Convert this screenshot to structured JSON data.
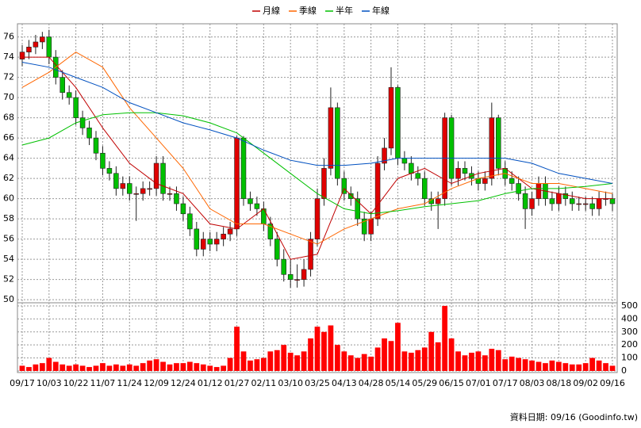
{
  "chart_data": [
    {
      "type": "candlestick",
      "xlim": [
        0,
        88
      ],
      "xticks": [
        {
          "value": 0,
          "label": "09/17"
        },
        {
          "value": 4,
          "label": "10/03"
        },
        {
          "value": 8,
          "label": "10/22"
        },
        {
          "value": 12,
          "label": "11/07"
        },
        {
          "value": 16,
          "label": "11/24"
        },
        {
          "value": 20,
          "label": "12/09"
        },
        {
          "value": 24,
          "label": "12/24"
        },
        {
          "value": 28,
          "label": "01/12"
        },
        {
          "value": 32,
          "label": "01/27"
        },
        {
          "value": 36,
          "label": "02/11"
        },
        {
          "value": 40,
          "label": "03/10"
        },
        {
          "value": 44,
          "label": "03/25"
        },
        {
          "value": 48,
          "label": "04/13"
        },
        {
          "value": 52,
          "label": "04/28"
        },
        {
          "value": 56,
          "label": "05/14"
        },
        {
          "value": 60,
          "label": "05/29"
        },
        {
          "value": 64,
          "label": "06/15"
        },
        {
          "value": 68,
          "label": "07/01"
        },
        {
          "value": 72,
          "label": "07/17"
        },
        {
          "value": 76,
          "label": "08/03"
        },
        {
          "value": 80,
          "label": "08/18"
        },
        {
          "value": 84,
          "label": "09/02"
        },
        {
          "value": 88,
          "label": "09/16"
        }
      ],
      "ylim": [
        49.7,
        77.3
      ],
      "yticks": [
        50,
        52,
        54,
        56,
        58,
        60,
        62,
        64,
        66,
        68,
        70,
        72,
        74,
        76
      ],
      "grid": true,
      "up_color": "#e00000",
      "down_color": "#00c000",
      "open": [
        73.8,
        74.5,
        75,
        75.5,
        76,
        74,
        72,
        70.5,
        70,
        68,
        67,
        66,
        64.5,
        63,
        62.5,
        61,
        61.5,
        60.5,
        60.5,
        61,
        61,
        63.5,
        60.5,
        60.5,
        59.5,
        58.5,
        57,
        55,
        56,
        55.5,
        56,
        56.5,
        57,
        66,
        60,
        59.5,
        59,
        57.5,
        56,
        54,
        52.5,
        52,
        52,
        53,
        56,
        60,
        63,
        69,
        62,
        60.5,
        60,
        58,
        56.5,
        58,
        63.5,
        65,
        71,
        64,
        63.5,
        62.5,
        62,
        60,
        59.5,
        60,
        68,
        62,
        63,
        62.5,
        62,
        61.5,
        62,
        68,
        63,
        62,
        61.5,
        60.5,
        59,
        60,
        61.5,
        60,
        59.5,
        60.5,
        60,
        59.5,
        59.5,
        59.5,
        59,
        60,
        60
      ],
      "high": [
        75.2,
        75.7,
        76.2,
        76.5,
        76.7,
        74.7,
        72.7,
        71.2,
        70.7,
        68.7,
        67.7,
        66.7,
        65.2,
        63.7,
        63.2,
        62.2,
        62.2,
        61.2,
        61.7,
        61.7,
        64.2,
        64.2,
        61.2,
        61.2,
        60.2,
        59.2,
        57.7,
        56.7,
        56.7,
        56.7,
        57.2,
        57.7,
        66.2,
        66.2,
        60.7,
        60.2,
        59.7,
        58.2,
        56.7,
        55,
        54,
        53.5,
        54,
        56.7,
        61,
        64,
        71,
        69.5,
        62.7,
        61.2,
        60.7,
        58.7,
        58.7,
        64.2,
        66,
        73,
        71.2,
        64.7,
        64.2,
        63.2,
        62.7,
        60.7,
        60.7,
        68.5,
        68.3,
        63.7,
        63.7,
        63.2,
        62.7,
        62.7,
        69.5,
        68.3,
        63.7,
        62.7,
        62.2,
        61.2,
        60.7,
        62.2,
        62.2,
        60.7,
        61.2,
        61.2,
        60.7,
        60.2,
        60.2,
        60.2,
        60.7,
        60.7,
        60.5
      ],
      "low": [
        73.1,
        73.8,
        74.3,
        74.8,
        73.3,
        71.3,
        69.8,
        69.3,
        67.3,
        66.3,
        65.3,
        63.8,
        62.3,
        61.8,
        60.3,
        60.3,
        59.8,
        57.8,
        59.8,
        60.3,
        60.3,
        59.8,
        59.8,
        58.8,
        57.8,
        56.3,
        54.3,
        54.3,
        54.8,
        54.8,
        55.3,
        55.8,
        56.3,
        59.3,
        58.8,
        58.3,
        56.8,
        55.3,
        53.3,
        51.8,
        51.2,
        51.2,
        51.3,
        52.3,
        55.3,
        59.3,
        62.3,
        61.3,
        59.8,
        59.3,
        57.3,
        55.8,
        55.8,
        57.3,
        62.8,
        64.3,
        63.3,
        62.8,
        61.8,
        61.3,
        59.3,
        58.8,
        57,
        59.3,
        61.3,
        61.3,
        61.8,
        61.3,
        60.8,
        60.8,
        61.3,
        62.3,
        61.3,
        60.8,
        59.8,
        57,
        58.3,
        59.3,
        59.3,
        58.8,
        58.8,
        59.3,
        58.8,
        58.8,
        58.8,
        58.3,
        58.3,
        59.3,
        58.8
      ],
      "close": [
        74.5,
        75,
        75.5,
        76,
        74,
        72,
        70.5,
        70,
        68,
        67,
        66,
        64.5,
        63,
        62.5,
        61,
        61.5,
        60.5,
        60.5,
        61,
        61,
        63.5,
        60.5,
        60.5,
        59.5,
        58.5,
        57,
        55,
        56,
        55.5,
        56,
        56.5,
        57,
        66,
        60,
        59.5,
        59,
        57.5,
        56,
        54,
        52.5,
        52,
        52,
        53,
        56,
        60,
        63,
        69,
        62,
        60.5,
        60,
        58,
        56.5,
        58,
        63.5,
        65,
        71,
        64,
        63.5,
        62.5,
        62,
        60,
        59.5,
        60,
        68,
        62,
        63,
        62.5,
        62,
        61.5,
        62,
        68,
        63,
        62,
        61.5,
        60.5,
        59,
        60,
        61.5,
        60,
        59.5,
        60.5,
        60,
        59.5,
        59.5,
        59.5,
        59,
        60,
        60,
        59.5
      ],
      "series": [
        {
          "name": "月線",
          "color": "#c00000",
          "x": [
            0,
            4,
            8,
            12,
            16,
            20,
            24,
            28,
            32,
            36,
            40,
            44,
            48,
            52,
            56,
            60,
            64,
            68,
            72,
            76,
            80,
            84,
            88
          ],
          "values": [
            74,
            74,
            71,
            67,
            63.5,
            61.5,
            60.5,
            57.5,
            57,
            59,
            54,
            54.5,
            61,
            58.5,
            62,
            63,
            61.5,
            62.5,
            63,
            61,
            60.5,
            60,
            60
          ]
        },
        {
          "name": "季線",
          "color": "#ff6600",
          "x": [
            0,
            4,
            8,
            12,
            16,
            20,
            24,
            28,
            32,
            36,
            40,
            44,
            48,
            52,
            56,
            60,
            64,
            68,
            72,
            76,
            80,
            84,
            88
          ],
          "values": [
            71,
            72.5,
            74.5,
            73,
            69,
            66,
            63,
            59,
            57.5,
            57.5,
            56.5,
            55.5,
            57,
            58,
            59,
            59.5,
            61,
            62,
            62.5,
            61.5,
            61.5,
            61,
            60.5
          ]
        },
        {
          "name": "半年",
          "color": "#00c000",
          "x": [
            0,
            4,
            8,
            12,
            16,
            20,
            24,
            28,
            32,
            36,
            40,
            44,
            48,
            52,
            56,
            60,
            64,
            68,
            72,
            76,
            80,
            84,
            88
          ],
          "values": [
            65.3,
            66,
            67.5,
            68.3,
            68.5,
            68.5,
            68.2,
            67.5,
            66.5,
            64.5,
            62.5,
            60.5,
            59,
            58.5,
            58.8,
            59.2,
            59.5,
            59.8,
            60.5,
            61,
            61,
            61.2,
            61.5
          ]
        },
        {
          "name": "年線",
          "color": "#0050c0",
          "x": [
            0,
            4,
            8,
            12,
            16,
            20,
            24,
            28,
            32,
            36,
            40,
            44,
            48,
            52,
            56,
            60,
            64,
            68,
            72,
            76,
            80,
            84,
            88
          ],
          "values": [
            73.5,
            73,
            72,
            71,
            69.5,
            68.5,
            67.5,
            66.8,
            66,
            64.8,
            63.8,
            63.3,
            63.3,
            63.5,
            64,
            64,
            64,
            64,
            64,
            63.5,
            62.5,
            62,
            61.5
          ]
        }
      ]
    },
    {
      "type": "bar",
      "color": "#ff0000",
      "ylim": [
        0,
        524
      ],
      "yticks": [
        0,
        100,
        200,
        300,
        400,
        500
      ],
      "values": [
        40,
        30,
        50,
        60,
        100,
        70,
        50,
        40,
        50,
        40,
        30,
        40,
        60,
        40,
        50,
        40,
        50,
        40,
        60,
        80,
        90,
        70,
        50,
        60,
        60,
        70,
        60,
        50,
        40,
        30,
        40,
        100,
        340,
        150,
        80,
        90,
        100,
        150,
        160,
        200,
        140,
        120,
        150,
        250,
        340,
        300,
        350,
        200,
        150,
        120,
        100,
        130,
        110,
        180,
        250,
        230,
        370,
        150,
        140,
        160,
        180,
        300,
        220,
        500,
        250,
        150,
        120,
        140,
        150,
        120,
        170,
        160,
        90,
        110,
        100,
        90,
        80,
        70,
        60,
        80,
        70,
        60,
        50,
        50,
        60,
        100,
        80,
        60,
        40
      ],
      "source_note": "資料日期: 09/16 (Goodinfo.tw)"
    }
  ]
}
